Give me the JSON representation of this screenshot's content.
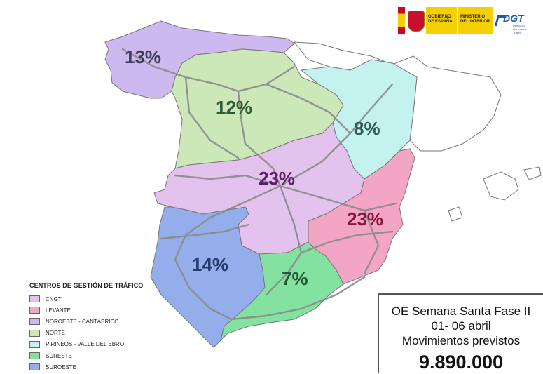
{
  "map": {
    "regions": [
      {
        "id": "noroeste",
        "percent": "13%",
        "color": "#cdb8f0",
        "text_color": "#3e3e5a"
      },
      {
        "id": "norte",
        "percent": "12%",
        "color": "#cde8b8",
        "text_color": "#2f5a36"
      },
      {
        "id": "pirineos",
        "percent": "8%",
        "color": "#c4f2ef",
        "text_color": "#2d5a5a"
      },
      {
        "id": "cngt",
        "percent": "23%",
        "color": "#e4c2ee",
        "text_color": "#5a1f66"
      },
      {
        "id": "levante",
        "percent": "23%",
        "color": "#f2a6c4",
        "text_color": "#8a1538"
      },
      {
        "id": "suroeste",
        "percent": "14%",
        "color": "#93aeea",
        "text_color": "#253a6e"
      },
      {
        "id": "sureste",
        "percent": "7%",
        "color": "#84e2a0",
        "text_color": "#235a35"
      }
    ],
    "road_color": "#8a8a8a",
    "border_color": "#777777"
  },
  "logos": {
    "gobierno": "GOBIERNO DE ESPAÑA",
    "ministerio": "MINISTERIO DEL INTERIOR",
    "dgt": "DGT",
    "dgt_sub": "Dirección General de Tráfico"
  },
  "legend": {
    "title": "CENTROS DE GESTIÓN DE TRÁFICO",
    "items": [
      {
        "label": "CNGT",
        "color": "#e4c2ee"
      },
      {
        "label": "LEVANTE",
        "color": "#f2a6c4"
      },
      {
        "label": "NOROESTE - CANTÁBRICO",
        "color": "#cdb8f0"
      },
      {
        "label": "NORTE",
        "color": "#cde8b8"
      },
      {
        "label": "PIRINEOS - VALLE DEL EBRO",
        "color": "#c4f2ef"
      },
      {
        "label": "SURESTE",
        "color": "#84e2a0"
      },
      {
        "label": "SUROESTE",
        "color": "#93aeea"
      }
    ]
  },
  "info": {
    "line1": "OE Semana Santa Fase II",
    "line2": "01- 06 abril",
    "line3": "Movimientos previstos",
    "total": "9.890.000"
  }
}
